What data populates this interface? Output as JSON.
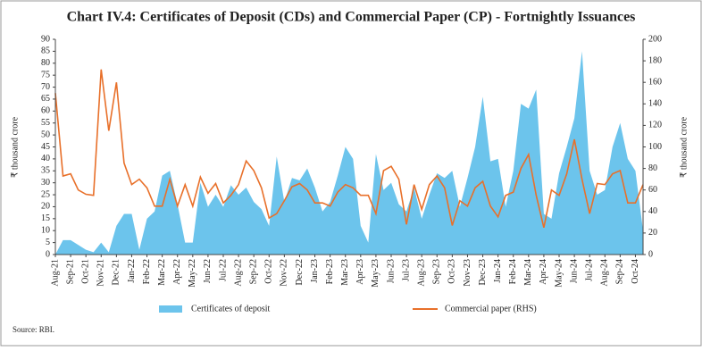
{
  "chart_data": {
    "type": "area-line",
    "title": "Chart IV.4: Certificates of Deposit (CDs) and Commercial Paper (CP) - Fortnightly Issuances",
    "y_label": "₹ thousand crore",
    "y2_label": "₹ thousand crore",
    "source": "Source: RBI.",
    "categories": [
      "Aug-21",
      null,
      "Sep-21",
      null,
      "Oct-21",
      null,
      "Nov-21",
      null,
      "Dec-21",
      null,
      "Jan-22",
      null,
      "Feb-22",
      null,
      "Mar-22",
      null,
      "Apr-22",
      null,
      "May-22",
      null,
      "Jun-22",
      null,
      "Jul-22",
      null,
      "Aug-22",
      null,
      "Sep-22",
      null,
      "Oct-22",
      null,
      "Nov-22",
      null,
      "Dec-22",
      null,
      "Jan-23",
      null,
      "Feb-23",
      null,
      "Mar-23",
      null,
      "Apr-23",
      null,
      "May-23",
      null,
      "Jun-23",
      null,
      "Jul-23",
      null,
      "Aug-23",
      null,
      "Sep-23",
      null,
      "Oct-23",
      null,
      "Nov-23",
      null,
      "Dec-23",
      null,
      "Jan-24",
      null,
      "Feb-24",
      null,
      "Mar-24",
      null,
      "Apr-24",
      null,
      "May-24",
      null,
      "Jun-24",
      null,
      "Jul-24",
      null,
      "Aug-24",
      null,
      "Sep-24",
      null,
      "Oct-24",
      null
    ],
    "series": [
      {
        "name": "Certificates of deposit",
        "kind": "area",
        "color": "#6cc4ec",
        "values": [
          0,
          6,
          6,
          4,
          2,
          1,
          5,
          1,
          12,
          17,
          17,
          2,
          15,
          18,
          33,
          35,
          21,
          5,
          5,
          30,
          20,
          25,
          20,
          29,
          25,
          28,
          22,
          19,
          12,
          41,
          22,
          32,
          31,
          36,
          28,
          18,
          22,
          33,
          45,
          40,
          12,
          5,
          42,
          27,
          30,
          21,
          18,
          28,
          15,
          25,
          34,
          32,
          35,
          20,
          32,
          45,
          66,
          39,
          40,
          20,
          35,
          63,
          61,
          69,
          17,
          15,
          34,
          45,
          57,
          85,
          35,
          25,
          27,
          45,
          55,
          40,
          35,
          10
        ]
      },
      {
        "name": "Commercial paper (RHS)",
        "kind": "line",
        "axis": "y2",
        "color": "#e8702a",
        "values": [
          150,
          73,
          75,
          60,
          56,
          55,
          172,
          115,
          160,
          85,
          65,
          70,
          62,
          45,
          45,
          70,
          45,
          65,
          45,
          72,
          57,
          66,
          48,
          55,
          65,
          87,
          78,
          62,
          34,
          38,
          50,
          63,
          66,
          60,
          48,
          48,
          45,
          58,
          65,
          62,
          55,
          55,
          38,
          78,
          82,
          70,
          28,
          65,
          42,
          65,
          73,
          62,
          27,
          50,
          45,
          62,
          68,
          45,
          35,
          55,
          58,
          80,
          93,
          55,
          25,
          60,
          55,
          75,
          107,
          70,
          38,
          66,
          65,
          75,
          78,
          48,
          48,
          65
        ]
      }
    ],
    "ylim": [
      0,
      90
    ],
    "yticks": [
      0,
      5,
      10,
      15,
      20,
      25,
      30,
      35,
      40,
      45,
      50,
      55,
      60,
      65,
      70,
      75,
      80,
      85,
      90
    ],
    "y2lim": [
      0,
      200
    ],
    "y2ticks": [
      0,
      20,
      40,
      60,
      80,
      100,
      120,
      140,
      160,
      180,
      200
    ],
    "legend": "bottom"
  }
}
